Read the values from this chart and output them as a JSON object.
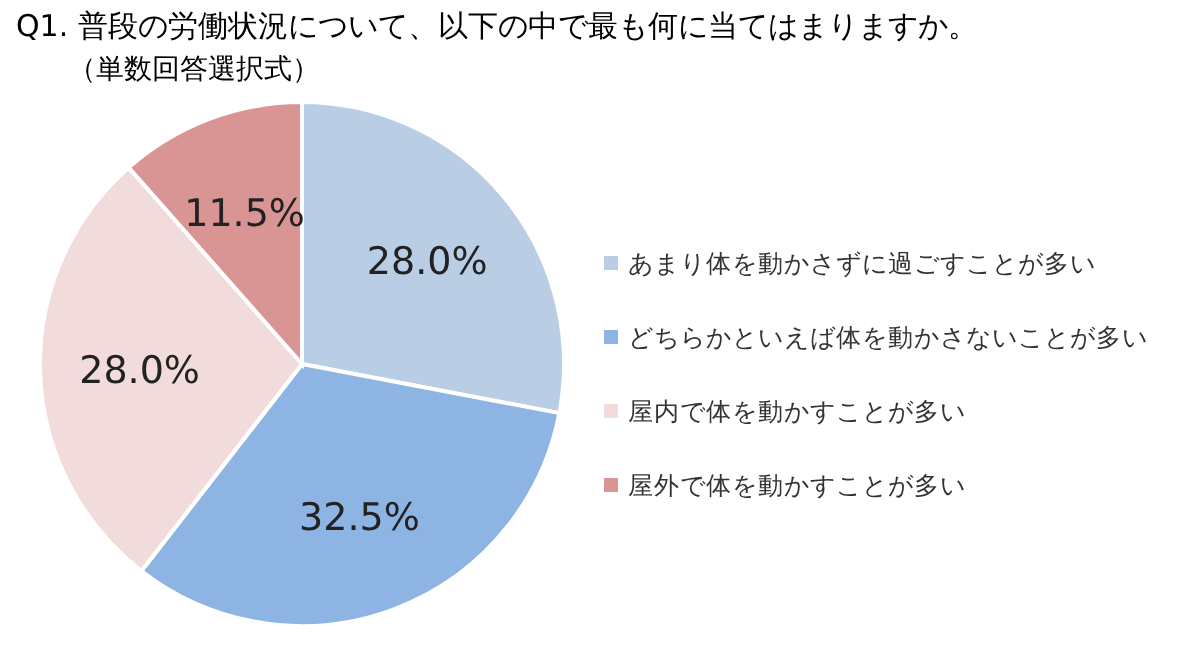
{
  "chart_data": {
    "type": "pie",
    "title": "Q1. 普段の労働状況について、以下の中で最も何に当てはまりますか。",
    "subtitle": "（単数回答選択式）",
    "categories": [
      "あまり体を動かさずに過ごすことが多い",
      "どちらかといえば体を動かさないことが多い",
      "屋内で体を動かすことが多い",
      "屋外で体を動かすことが多い"
    ],
    "values": [
      28.0,
      32.5,
      28.0,
      11.5
    ],
    "colors": [
      "#b9cde5",
      "#8eb4e3",
      "#f2dcdb",
      "#d99594"
    ],
    "value_labels": [
      "28.0%",
      "32.5%",
      "28.0%",
      "11.5%"
    ],
    "legend": "right"
  }
}
